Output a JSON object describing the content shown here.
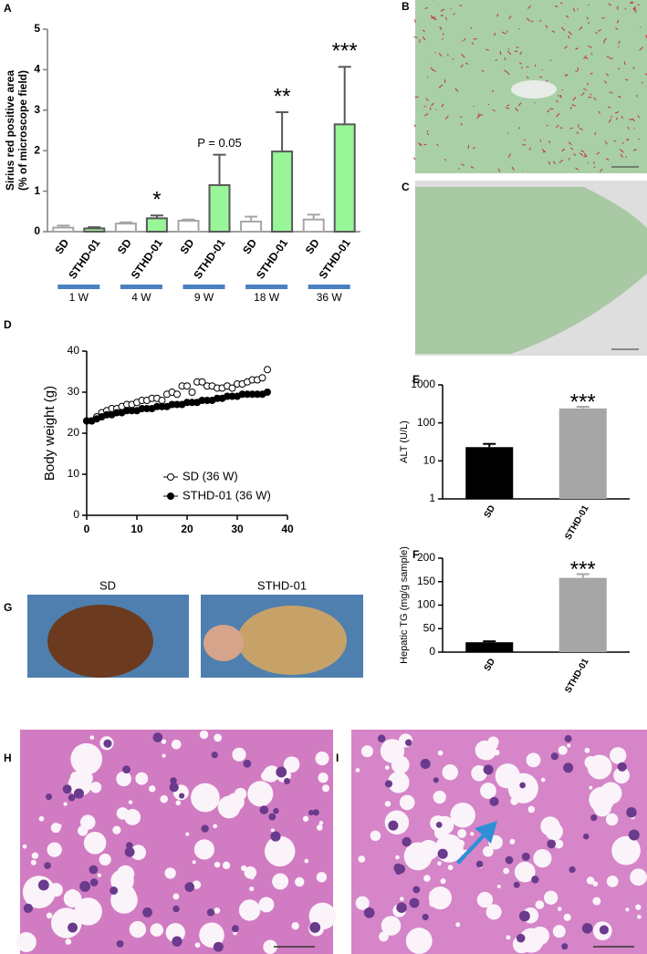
{
  "panel_labels": [
    "A",
    "B",
    "C",
    "D",
    "E",
    "F",
    "G",
    "H",
    "I"
  ],
  "photo_labels": [
    "SD",
    "STHD-01"
  ],
  "chart_data": [
    {
      "type": "bar",
      "ylabel": [
        "Sirius red positive area",
        "(% of microscope field)"
      ],
      "categories": [
        "1 W",
        "4 W",
        "9 W",
        "18 W",
        "36 W"
      ],
      "group_marker_color": "#4a7fc1",
      "series": [
        {
          "name": "SD",
          "fill": "#ffffff",
          "color": "#a6a6a6",
          "values": [
            0.1,
            0.2,
            0.27,
            0.25,
            0.3
          ],
          "errors": [
            0.05,
            0.03,
            0.03,
            0.12,
            0.12
          ]
        },
        {
          "name": "STHD-01",
          "fill": "#98f598",
          "color": "#595959",
          "values": [
            0.08,
            0.33,
            1.15,
            1.98,
            2.65
          ],
          "errors": [
            0.03,
            0.07,
            0.75,
            0.97,
            1.42
          ]
        }
      ],
      "annotations": [
        null,
        "*",
        "P = 0.05",
        "**",
        "***"
      ],
      "ylim": [
        0,
        5
      ],
      "yticks": [
        0,
        1,
        2,
        3,
        4,
        5
      ]
    },
    {
      "type": "line",
      "ylabel": "Body weight (g)",
      "x": [
        0,
        1,
        2,
        3,
        4,
        5,
        6,
        7,
        8,
        9,
        10,
        11,
        12,
        13,
        14,
        15,
        16,
        17,
        18,
        19,
        20,
        21,
        22,
        23,
        24,
        25,
        26,
        27,
        28,
        29,
        30,
        31,
        32,
        33,
        34,
        35,
        36
      ],
      "series": [
        {
          "name": "SD (36 W)",
          "color": "#000000",
          "marker": "open",
          "values": [
            23,
            23,
            24,
            25,
            25.5,
            26,
            26,
            26.5,
            27,
            27,
            27.5,
            28,
            28,
            28.5,
            28.5,
            28,
            29.5,
            30,
            29.5,
            31.5,
            31.5,
            30,
            32.5,
            32.5,
            31.5,
            31.5,
            31,
            31,
            31.5,
            31,
            32,
            32,
            32.5,
            33,
            33,
            33.5,
            35.5
          ]
        },
        {
          "name": "STHD-01 (36 W)",
          "color": "#000000",
          "marker": "filled",
          "values": [
            23,
            23,
            23.5,
            24,
            24.5,
            24.5,
            25,
            25,
            25.5,
            25.5,
            25.5,
            26,
            26,
            26,
            26.5,
            26.5,
            26.5,
            27,
            27,
            27,
            27.5,
            27.5,
            27.5,
            28,
            28,
            28,
            28.5,
            28.5,
            29,
            29,
            29,
            29.5,
            29.5,
            29.5,
            29.5,
            29.5,
            30
          ]
        }
      ],
      "xlim": [
        0,
        40
      ],
      "xticks": [
        0,
        10,
        20,
        30,
        40
      ],
      "ylim": [
        0,
        40
      ],
      "yticks": [
        0,
        10,
        20,
        30,
        40
      ]
    },
    {
      "type": "bar",
      "log": true,
      "ylabel": "ALT (U/L)",
      "categories": [
        "SD",
        "STHD-01"
      ],
      "values": [
        23,
        240
      ],
      "errors": [
        5,
        25
      ],
      "colors": [
        "#000000",
        "#a6a6a6"
      ],
      "annotations": [
        null,
        "***"
      ],
      "ylim": [
        1,
        1000
      ],
      "yticks": [
        1,
        10,
        100,
        1000
      ]
    },
    {
      "type": "bar",
      "ylabel": "Hepatic TG (mg/g sample)",
      "categories": [
        "SD",
        "STHD-01"
      ],
      "values": [
        21,
        158
      ],
      "errors": [
        2,
        8
      ],
      "colors": [
        "#000000",
        "#a6a6a6"
      ],
      "annotations": [
        null,
        "***"
      ],
      "ylim": [
        0,
        200
      ],
      "yticks": [
        0,
        50,
        100,
        150,
        200
      ]
    }
  ]
}
